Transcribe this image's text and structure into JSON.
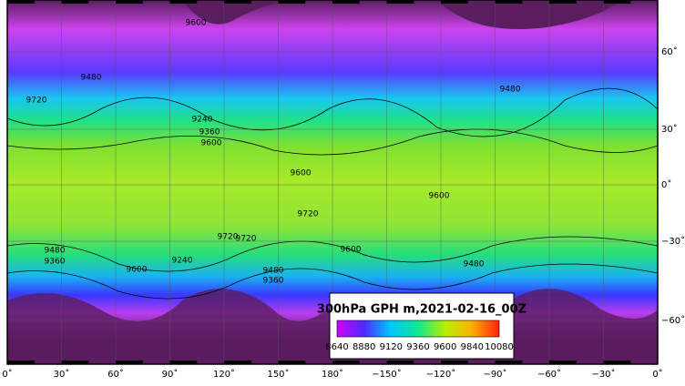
{
  "map": {
    "title": "300hPa GPH m,2021-02-16_00Z",
    "colorbar_ticks": [
      "8640",
      "8880",
      "9120",
      "9360",
      "9600",
      "9840",
      "10080"
    ],
    "lon_labels": [
      "0˚",
      "30˚",
      "60˚",
      "90˚",
      "120˚",
      "150˚",
      "180˚",
      "−150˚",
      "−120˚",
      "−90˚",
      "−60˚",
      "−30˚",
      "0˚"
    ],
    "lat_labels": [
      "60˚",
      "30˚",
      "0˚",
      "−30˚",
      "−60˚"
    ],
    "contour_labels": [
      "9720",
      "9480",
      "9240",
      "9360",
      "9600",
      "9600",
      "9720",
      "9600",
      "9720",
      "9720",
      "9480",
      "9360",
      "9600",
      "9480",
      "9360",
      "9240",
      "9600",
      "9480",
      "9600",
      "9480"
    ]
  }
}
